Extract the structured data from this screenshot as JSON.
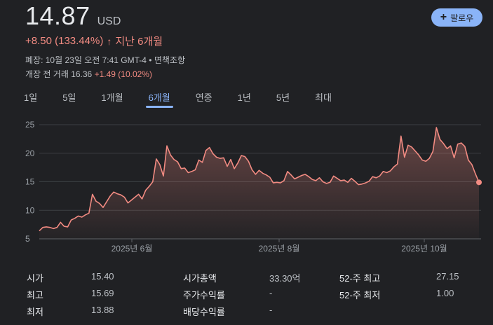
{
  "header": {
    "price": "14.87",
    "currency": "USD",
    "follow_label": "팔로우",
    "change": "+8.50 (133.44%)",
    "change_arrow": "↑",
    "period": "지난 6개월",
    "close_info": "폐장: 10월 23일 오전 7:41 GMT-4 • 면책조항",
    "premarket_label": "개장 전 거래 16.36",
    "premarket_change": "+1.49 (10.02%)"
  },
  "tabs": [
    {
      "label": "1일",
      "active": false
    },
    {
      "label": "5일",
      "active": false
    },
    {
      "label": "1개월",
      "active": false
    },
    {
      "label": "6개월",
      "active": true
    },
    {
      "label": "연중",
      "active": false
    },
    {
      "label": "1년",
      "active": false
    },
    {
      "label": "5년",
      "active": false
    },
    {
      "label": "최대",
      "active": false
    }
  ],
  "chart_data": {
    "type": "area",
    "title": "",
    "xlabel": "",
    "ylabel": "",
    "ylim": [
      5,
      25
    ],
    "yticks": [
      25,
      20,
      15,
      10,
      5
    ],
    "xtick_labels": [
      "2025년 6월",
      "2025년 8월",
      "2025년 10월"
    ],
    "grid": true,
    "line_color": "#f28b82",
    "values": [
      6.4,
      7.0,
      7.1,
      7.0,
      6.8,
      7.0,
      7.9,
      7.2,
      7.1,
      8.3,
      8.6,
      9.0,
      8.8,
      9.2,
      9.5,
      12.8,
      11.6,
      11.2,
      10.5,
      11.5,
      12.5,
      13.2,
      12.9,
      12.7,
      12.3,
      11.3,
      11.8,
      12.3,
      12.8,
      12.0,
      13.5,
      14.2,
      15.0,
      19.0,
      18.0,
      16.0,
      21.3,
      19.7,
      18.9,
      18.5,
      17.3,
      17.4,
      16.6,
      16.8,
      17.1,
      18.8,
      18.4,
      20.5,
      21.0,
      19.9,
      19.3,
      19.1,
      19.2,
      17.7,
      18.9,
      17.3,
      18.3,
      19.6,
      19.4,
      18.6,
      17.1,
      16.3,
      17.0,
      16.5,
      16.2,
      15.8,
      14.8,
      14.9,
      14.8,
      15.2,
      16.8,
      16.2,
      15.5,
      15.8,
      16.1,
      16.3,
      15.9,
      15.4,
      15.2,
      15.7,
      15.0,
      14.7,
      14.9,
      16.0,
      15.6,
      15.2,
      15.3,
      14.9,
      15.6,
      15.1,
      14.5,
      14.6,
      14.8,
      15.1,
      15.9,
      15.7,
      16.0,
      16.8,
      16.6,
      16.9,
      17.6,
      18.1,
      23.0,
      19.3,
      21.4,
      21.1,
      20.4,
      19.7,
      18.8,
      18.6,
      19.1,
      20.3,
      24.5,
      22.4,
      21.7,
      20.8,
      21.3,
      19.2,
      21.6,
      21.8,
      21.2,
      18.8,
      18.0,
      16.4,
      14.9
    ]
  },
  "stats": {
    "col1": [
      {
        "label": "시가",
        "value": "15.40"
      },
      {
        "label": "최고",
        "value": "15.69"
      },
      {
        "label": "최저",
        "value": "13.88"
      }
    ],
    "col2": [
      {
        "label": "시가총액",
        "value": "33.30억"
      },
      {
        "label": "주가수익률",
        "value": "-"
      },
      {
        "label": "배당수익률",
        "value": "-"
      }
    ],
    "col3": [
      {
        "label": "52-주 최고",
        "value": "27.15"
      },
      {
        "label": "52-주 최저",
        "value": "1.00"
      }
    ]
  }
}
